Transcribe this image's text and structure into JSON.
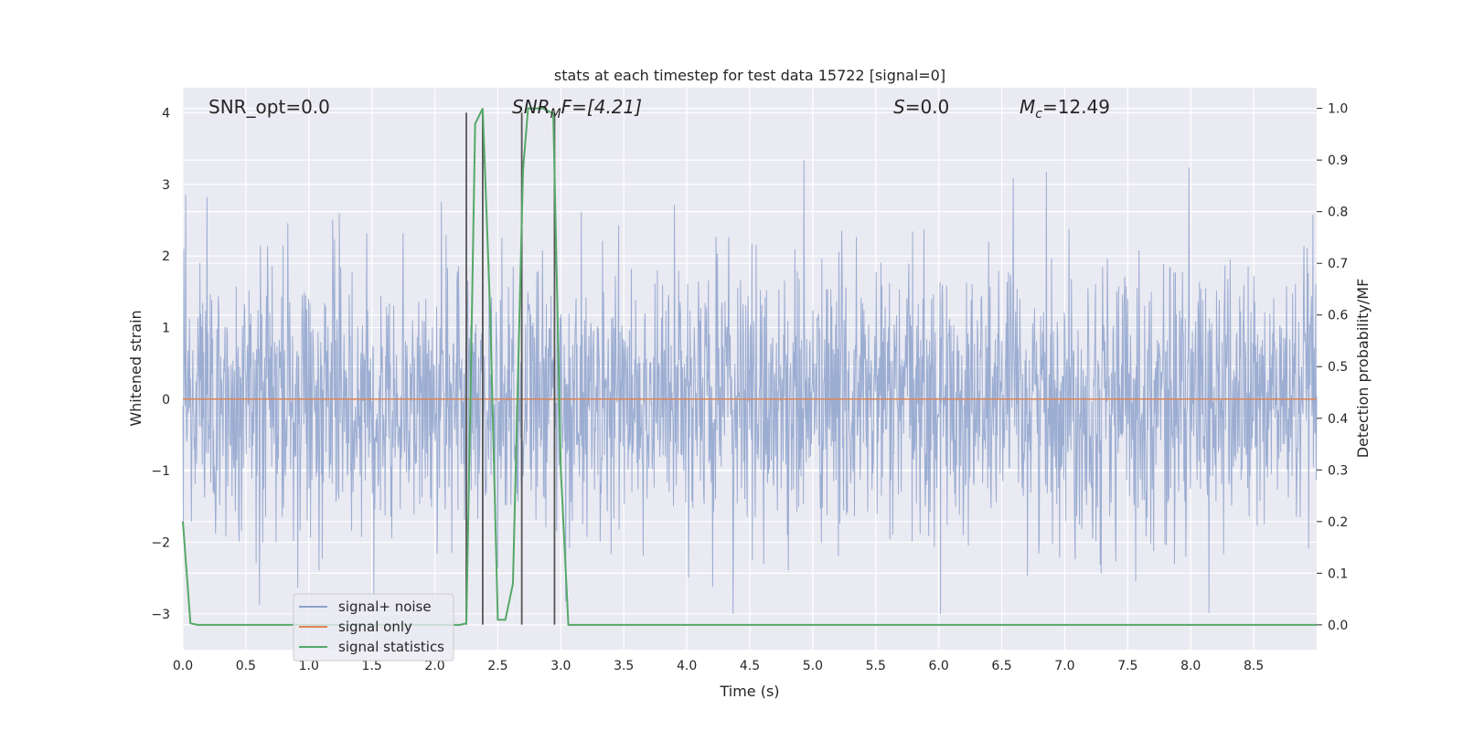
{
  "chart_data": {
    "type": "line",
    "title": "stats at each timestep for test data 15722 [signal=0]",
    "xlabel": "Time (s)",
    "ylabel_left": "Whitened strain",
    "ylabel_right": "Detection probability/MF",
    "xlim": [
      0.0,
      9.0
    ],
    "ylim_left": [
      -3.5,
      4.35
    ],
    "ylim_right": [
      -0.048,
      1.04
    ],
    "x_ticks": [
      "0.0",
      "0.5",
      "1.0",
      "1.5",
      "2.0",
      "2.5",
      "3.0",
      "3.5",
      "4.0",
      "4.5",
      "5.0",
      "5.5",
      "6.0",
      "6.5",
      "7.0",
      "7.5",
      "8.0",
      "8.5"
    ],
    "y_left_ticks": [
      "4",
      "3",
      "2",
      "1",
      "0",
      "−1",
      "−2",
      "−3"
    ],
    "y_right_ticks": [
      "1.0",
      "0.9",
      "0.8",
      "0.7",
      "0.6",
      "0.5",
      "0.4",
      "0.3",
      "0.2",
      "0.1",
      "0.0"
    ],
    "grid": true,
    "legend_placement": "lower-left",
    "annotations": {
      "snr_opt": "SNR_opt=0.0",
      "snr_mf_main": "SNR",
      "snr_mf_sub": "M",
      "snr_mf_rest": "F=[4.21]",
      "s_main": "S",
      "s_rest": "=0.0",
      "mc_main": "M",
      "mc_sub": "c",
      "mc_rest": "=12.49"
    },
    "colors": {
      "background": "#eaeaf2",
      "grid": "#ffffff",
      "noise": "#8ea2cc",
      "signal": "#dd8452",
      "statistics": "#55a868",
      "vlines": "#555555"
    },
    "series": [
      {
        "name": "signal+ noise",
        "description_of_shape": "dense noise fluctuating mostly within about -2.7 to 3.4"
      },
      {
        "name": "signal only",
        "x": [
          0.0,
          9.0
        ],
        "y": [
          0.0,
          0.0
        ]
      },
      {
        "name": "signal statistics",
        "x": [
          0.0,
          0.06,
          0.12,
          1.0,
          2.0,
          2.2,
          2.25,
          2.28,
          2.32,
          2.38,
          2.44,
          2.5,
          2.56,
          2.62,
          2.7,
          2.74,
          2.8,
          2.86,
          2.94,
          3.0,
          3.06,
          3.1,
          9.0
        ],
        "y": [
          0.2,
          0.003,
          0.0,
          0.0,
          0.0,
          0.0,
          0.003,
          0.4,
          0.97,
          1.0,
          0.6,
          0.01,
          0.01,
          0.08,
          0.88,
          1.0,
          1.0,
          1.0,
          0.99,
          0.3,
          0.0,
          0.0,
          0.0
        ]
      }
    ],
    "vertical_lines_x": [
      2.25,
      2.38,
      2.69,
      2.95
    ],
    "vertical_lines_range_left": [
      -3.15,
      4.0
    ]
  }
}
